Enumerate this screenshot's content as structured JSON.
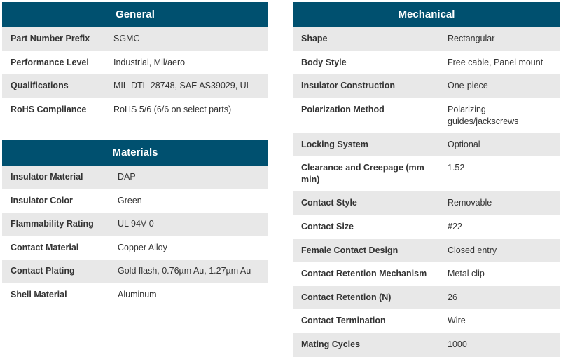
{
  "colors": {
    "header_bg": "#00506f",
    "row_alt": "#e8e8e8"
  },
  "general": {
    "title": "General",
    "rows": [
      {
        "label": "Part Number Prefix",
        "value": "SGMC"
      },
      {
        "label": "Performance Level",
        "value": "Industrial, Mil/aero"
      },
      {
        "label": "Qualifications",
        "value": "MIL-DTL-28748, SAE AS39029, UL"
      },
      {
        "label": "RoHS Compliance",
        "value": "RoHS 5/6 (6/6 on select parts)"
      }
    ]
  },
  "materials": {
    "title": "Materials",
    "rows": [
      {
        "label": "Insulator Material",
        "value": "DAP"
      },
      {
        "label": "Insulator Color",
        "value": "Green"
      },
      {
        "label": "Flammability Rating",
        "value": "UL 94V-0"
      },
      {
        "label": "Contact Material",
        "value": "Copper Alloy"
      },
      {
        "label": "Contact Plating",
        "value": "Gold flash, 0.76µm Au, 1.27µm Au"
      },
      {
        "label": "Shell Material",
        "value": "Aluminum"
      }
    ]
  },
  "mechanical": {
    "title": "Mechanical",
    "rows": [
      {
        "label": "Shape",
        "value": "Rectangular"
      },
      {
        "label": "Body Style",
        "value": "Free cable, Panel mount"
      },
      {
        "label": "Insulator Construction",
        "value": "One-piece"
      },
      {
        "label": "Polarization Method",
        "value": "Polarizing guides/jackscrews"
      },
      {
        "label": "Locking System",
        "value": "Optional"
      },
      {
        "label": "Clearance and Creepage (mm min)",
        "value": "1.52"
      },
      {
        "label": "Contact Style",
        "value": "Removable"
      },
      {
        "label": "Contact Size",
        "value": "#22"
      },
      {
        "label": "Female Contact Design",
        "value": "Closed entry"
      },
      {
        "label": "Contact Retention Mechanism",
        "value": "Metal clip"
      },
      {
        "label": "Contact Retention (N)",
        "value": "26"
      },
      {
        "label": "Contact Termination",
        "value": "Wire"
      },
      {
        "label": "Mating Cycles",
        "value": "1000"
      }
    ]
  }
}
